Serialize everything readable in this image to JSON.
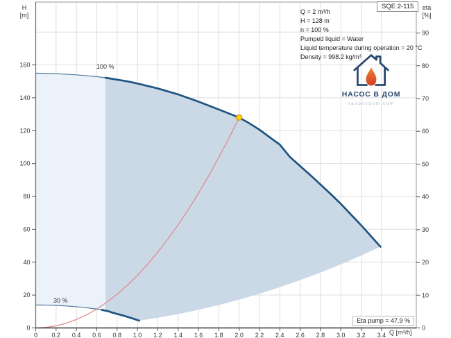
{
  "title_box": {
    "label": "SQE 2-115"
  },
  "info_panel": {
    "lines": [
      "Q = 2 m³/h",
      "H = 128 m",
      "n = 100 %",
      "Pumped liquid = Water",
      "Liquid temperature during operation = 20 °C",
      "Density = 998.2 kg/m³"
    ]
  },
  "logo": {
    "name": "НАСОС В ДОМ",
    "website": "nasosvdom.com"
  },
  "annotations": {
    "curve_100_label": "100 %",
    "curve_30_label": "30 %",
    "eta_pump_label": "Eta pump = 47.9 %"
  },
  "axes": {
    "left": {
      "title_line1": "H",
      "title_line2": "[m]",
      "ticks": [
        0,
        20,
        40,
        60,
        80,
        100,
        120,
        140,
        160
      ],
      "grid": [
        20,
        40,
        60,
        80,
        100,
        120,
        140,
        160,
        180
      ]
    },
    "right": {
      "title_line1": "eta",
      "title_line2": "[%]",
      "ticks": [
        0,
        10,
        20,
        30,
        40,
        50,
        60,
        70,
        80,
        90
      ]
    },
    "bottom": {
      "title": "Q [m³/h]",
      "ticks": [
        0,
        0.2,
        0.4,
        0.6,
        0.8,
        1.0,
        1.2,
        1.4,
        1.6,
        1.8,
        2.0,
        2.2,
        2.4,
        2.6,
        2.8,
        3.0,
        3.2,
        3.4
      ],
      "grid": [
        0.2,
        0.4,
        0.6,
        0.8,
        1.0,
        1.2,
        1.4,
        1.6,
        1.8,
        2.0,
        2.2,
        2.4,
        2.6,
        2.8,
        3.0,
        3.2,
        3.4
      ]
    }
  },
  "chart_data": {
    "type": "line",
    "title": "SQE 2-115 pump performance curve (H-Q with efficiency duty point)",
    "xlabel": "Q [m³/h]",
    "ylabel_left": "H [m]",
    "ylabel_right": "eta [%]",
    "xlim": [
      0,
      3.744
    ],
    "ylim_left": [
      0,
      198.3
    ],
    "ylim_right": [
      0,
      99.5
    ],
    "grid": true,
    "duty_point": {
      "Q": 2.0,
      "H": 128,
      "eta_pump_pct": 47.9,
      "marker_fill": "#ffd400",
      "marker_stroke": "#cf9a1c"
    },
    "regions": {
      "light_fill": "#ebf2f9",
      "dark_fill": "#cbd8e6",
      "split_q": 0.686
    },
    "series": [
      {
        "name": "pump_curve_100pct",
        "label": "100 %",
        "color": "#1d5380",
        "color_thin": "#54799e",
        "emph_from_q": 0.686,
        "points": [
          [
            0,
            155
          ],
          [
            0.2,
            154.7
          ],
          [
            0.4,
            154.0
          ],
          [
            0.6,
            152.9
          ],
          [
            0.686,
            152.2
          ],
          [
            0.9,
            150.0
          ],
          [
            1.0,
            148.7
          ],
          [
            1.2,
            145.7
          ],
          [
            1.4,
            142.1
          ],
          [
            1.6,
            137.7
          ],
          [
            1.8,
            132.9
          ],
          [
            2.0,
            128.0
          ],
          [
            2.1,
            124.5
          ],
          [
            2.2,
            120.6
          ],
          [
            2.4,
            111.5
          ],
          [
            2.5,
            104.0
          ],
          [
            2.7,
            93.0
          ],
          [
            2.9,
            81.5
          ],
          [
            3.0,
            75.5
          ],
          [
            3.2,
            62.5
          ],
          [
            3.39,
            49.4
          ]
        ]
      },
      {
        "name": "pump_curve_30pct",
        "label": "30 %",
        "color": "#1d5380",
        "color_thin": "#54799e",
        "emph_from_q": 0.65,
        "points": [
          [
            0,
            13.95
          ],
          [
            0.06,
            13.92
          ],
          [
            0.12,
            13.86
          ],
          [
            0.18,
            13.76
          ],
          [
            0.21,
            13.7
          ],
          [
            0.27,
            13.5
          ],
          [
            0.3,
            13.38
          ],
          [
            0.36,
            13.11
          ],
          [
            0.42,
            12.79
          ],
          [
            0.48,
            12.39
          ],
          [
            0.54,
            11.96
          ],
          [
            0.6,
            11.52
          ],
          [
            0.63,
            11.21
          ],
          [
            0.66,
            10.85
          ],
          [
            0.72,
            10.04
          ],
          [
            0.75,
            9.36
          ],
          [
            0.81,
            8.37
          ],
          [
            0.87,
            7.34
          ],
          [
            0.9,
            6.8
          ],
          [
            0.96,
            5.63
          ],
          [
            1.017,
            4.45
          ]
        ]
      },
      {
        "name": "max_flow_boundary",
        "label": "max flow locus",
        "color": null,
        "points": [
          [
            1.017,
            4.45
          ],
          [
            1.2,
            6.2
          ],
          [
            1.4,
            8.4
          ],
          [
            1.6,
            11.0
          ],
          [
            1.8,
            13.9
          ],
          [
            2.0,
            17.2
          ],
          [
            2.2,
            20.8
          ],
          [
            2.4,
            24.8
          ],
          [
            2.6,
            29.1
          ],
          [
            2.8,
            33.7
          ],
          [
            3.0,
            38.7
          ],
          [
            3.2,
            44.0
          ],
          [
            3.39,
            49.4
          ]
        ]
      },
      {
        "name": "system_curve",
        "label": "system curve H = 32·Q²",
        "color": "#dc8f8f",
        "points": [
          [
            0.03,
            0.03
          ],
          [
            0.1,
            0.32
          ],
          [
            0.2,
            1.28
          ],
          [
            0.3,
            2.88
          ],
          [
            0.4,
            5.12
          ],
          [
            0.5,
            8.0
          ],
          [
            0.6,
            11.52
          ],
          [
            0.7,
            15.68
          ],
          [
            0.8,
            20.48
          ],
          [
            0.9,
            25.92
          ],
          [
            1.0,
            32.0
          ],
          [
            1.1,
            38.72
          ],
          [
            1.2,
            46.08
          ],
          [
            1.3,
            54.08
          ],
          [
            1.4,
            62.72
          ],
          [
            1.5,
            72.0
          ],
          [
            1.6,
            81.92
          ],
          [
            1.7,
            92.48
          ],
          [
            1.8,
            103.68
          ],
          [
            1.9,
            115.52
          ],
          [
            2.0,
            128.0
          ]
        ]
      }
    ]
  }
}
